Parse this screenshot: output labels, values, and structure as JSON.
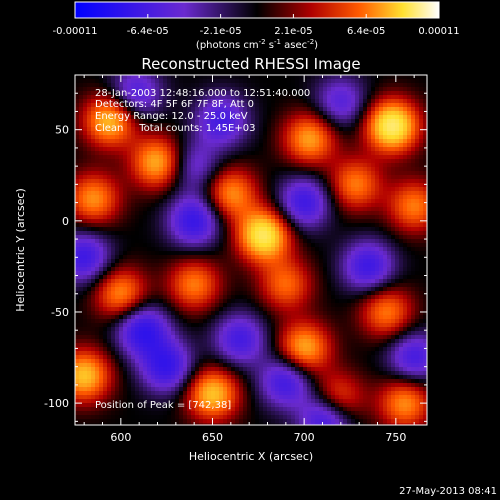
{
  "chart_data": {
    "type": "heatmap",
    "title": "Reconstructed RHESSI Image",
    "xlabel": "Heliocentric X (arcsec)",
    "ylabel": "Heliocentric Y (arcsec)",
    "xlim": [
      575,
      767
    ],
    "ylim": [
      -112,
      80
    ],
    "x_ticks": [
      600,
      650,
      700,
      750
    ],
    "y_ticks": [
      -100,
      -50,
      0,
      50
    ],
    "colorbar": {
      "min": -0.00011,
      "max": 0.00011,
      "tick_labels": [
        "-0.00011",
        "-6.4e-05",
        "-2.1e-05",
        "2.1e-05",
        "6.4e-05",
        "0.00011"
      ],
      "unit_label": {
        "prefix": "(photons cm",
        "exp1": "-2",
        "mid": " s",
        "exp2": "-1",
        "mid2": " asec",
        "exp3": "-2",
        "suffix": ")"
      },
      "colors": [
        "#0000ff",
        "#6a2ad0",
        "#000000",
        "#b00000",
        "#ff5a00",
        "#ffe030",
        "#ffffff"
      ]
    },
    "info_lines": [
      "28-Jan-2003 12:48:16.000 to 12:51:40.000",
      "Detectors: 4F 5F 6F 7F 8F, Att 0",
      "Energy Range: 12.0 - 25.0 keV",
      "Clean     Total counts: 1.45E+03"
    ],
    "peak_label": "Position of Peak = [742,38]",
    "timestamp": "27-May-2013 08:41",
    "blobs": [
      {
        "x": 748,
        "y": 52,
        "v": 1.0
      },
      {
        "x": 678,
        "y": -8,
        "v": 0.95
      },
      {
        "x": 594,
        "y": 55,
        "v": 0.75
      },
      {
        "x": 620,
        "y": 32,
        "v": 0.7
      },
      {
        "x": 660,
        "y": 15,
        "v": 0.6
      },
      {
        "x": 703,
        "y": 45,
        "v": 0.65
      },
      {
        "x": 728,
        "y": 20,
        "v": 0.55
      },
      {
        "x": 585,
        "y": 12,
        "v": 0.6
      },
      {
        "x": 600,
        "y": -40,
        "v": 0.6
      },
      {
        "x": 640,
        "y": -35,
        "v": 0.55
      },
      {
        "x": 700,
        "y": -70,
        "v": 0.7
      },
      {
        "x": 745,
        "y": -50,
        "v": 0.55
      },
      {
        "x": 580,
        "y": -85,
        "v": 0.75
      },
      {
        "x": 650,
        "y": -95,
        "v": 0.75
      },
      {
        "x": 718,
        "y": -98,
        "v": 0.55
      },
      {
        "x": 755,
        "y": -100,
        "v": 0.6
      },
      {
        "x": 760,
        "y": 8,
        "v": 0.55
      },
      {
        "x": 690,
        "y": -35,
        "v": 0.5
      },
      {
        "x": 612,
        "y": -60,
        "v": -0.7
      },
      {
        "x": 640,
        "y": 0,
        "v": -0.65
      },
      {
        "x": 700,
        "y": 10,
        "v": -0.6
      },
      {
        "x": 580,
        "y": -20,
        "v": -0.6
      },
      {
        "x": 625,
        "y": -80,
        "v": -0.65
      },
      {
        "x": 690,
        "y": -88,
        "v": -0.6
      },
      {
        "x": 712,
        "y": -108,
        "v": -0.7
      },
      {
        "x": 735,
        "y": -25,
        "v": -0.6
      },
      {
        "x": 655,
        "y": 55,
        "v": -0.55
      },
      {
        "x": 608,
        "y": 70,
        "v": -0.5
      },
      {
        "x": 760,
        "y": -75,
        "v": -0.55
      },
      {
        "x": 665,
        "y": -65,
        "v": -0.55
      },
      {
        "x": 720,
        "y": 65,
        "v": -0.45
      },
      {
        "x": 640,
        "y": 30,
        "v": -0.4
      }
    ]
  }
}
